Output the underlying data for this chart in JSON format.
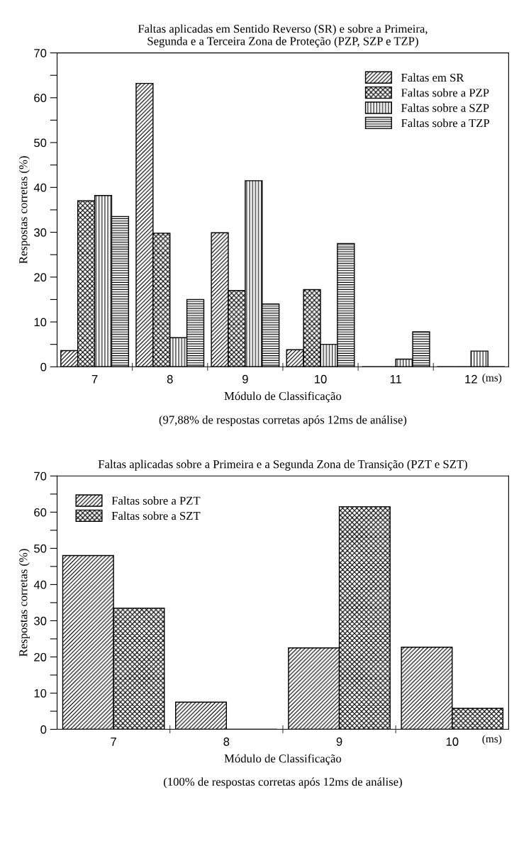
{
  "chart_data": [
    {
      "type": "bar",
      "title": "Faltas aplicadas em Sentido Reverso (SR) e sobre a Primeira,\nSegunda e a Terceira Zona de Proteção (PZP, SZP e TZP)",
      "xlabel": "Módulo de Classificação",
      "ylabel": "Respostas corretas (%)",
      "categories": [
        "7",
        "8",
        "9",
        "10",
        "11",
        "12"
      ],
      "series": [
        {
          "name": "Faltas em SR",
          "color": "#000000",
          "values": [
            3.6,
            63.2,
            29.9,
            3.8,
            0,
            0
          ]
        },
        {
          "name": "Faltas sobre a PZP",
          "color": "#000000",
          "values": [
            37,
            29.8,
            17,
            17.2,
            0,
            0
          ]
        },
        {
          "name": "Faltas sobre a SZP",
          "color": "#000000",
          "values": [
            38.2,
            6.5,
            41.5,
            5,
            1.7,
            3.5
          ]
        },
        {
          "name": "Faltas sobre a TZP",
          "color": "#000000",
          "values": [
            33.5,
            15,
            14,
            27.5,
            7.8,
            0
          ]
        }
      ],
      "ylim": [
        0,
        70
      ],
      "yticks": [
        0,
        {
          "value": 5,
          "label": null
        },
        10,
        {
          "value": 15,
          "label": null
        },
        20,
        {
          "value": 25,
          "label": null
        },
        30,
        {
          "value": 35,
          "label": null
        },
        40,
        {
          "value": 45,
          "label": null
        },
        50,
        {
          "value": 55,
          "label": null
        },
        60,
        {
          "value": 65,
          "label": null
        },
        70
      ],
      "grid": false,
      "legend": "top right",
      "annotations": [
        "(ms)",
        "(97,88% de respostas corretas após 12ms de análise)"
      ]
    },
    {
      "type": "bar",
      "title": "Faltas aplicadas sobre a Primeira e a Segunda Zona de Transição (PZT e SZT)",
      "xlabel": "Módulo de Classificação",
      "ylabel": "Respostas corretas (%)",
      "categories": [
        "7",
        "8",
        "9",
        "10"
      ],
      "series": [
        {
          "name": "Faltas sobre a PZT",
          "color": "#000000",
          "values": [
            48,
            7.5,
            22.5,
            22.7
          ]
        },
        {
          "name": "Faltas sobre a SZT",
          "color": "#000000",
          "values": [
            33.5,
            0,
            61.5,
            5.8
          ]
        }
      ],
      "ylim": [
        0,
        70
      ],
      "yticks": [
        0,
        {
          "value": 5,
          "label": null
        },
        10,
        {
          "value": 15,
          "label": null
        },
        20,
        {
          "value": 25,
          "label": null
        },
        30,
        {
          "value": 35,
          "label": null
        },
        40,
        {
          "value": 45,
          "label": null
        },
        50,
        {
          "value": 55,
          "label": null
        },
        60,
        {
          "value": 65,
          "label": null
        },
        70
      ],
      "grid": false,
      "legend": "top left",
      "annotations": [
        "(ms)",
        "(100% de respostas corretas após 12ms de análise)"
      ]
    }
  ]
}
